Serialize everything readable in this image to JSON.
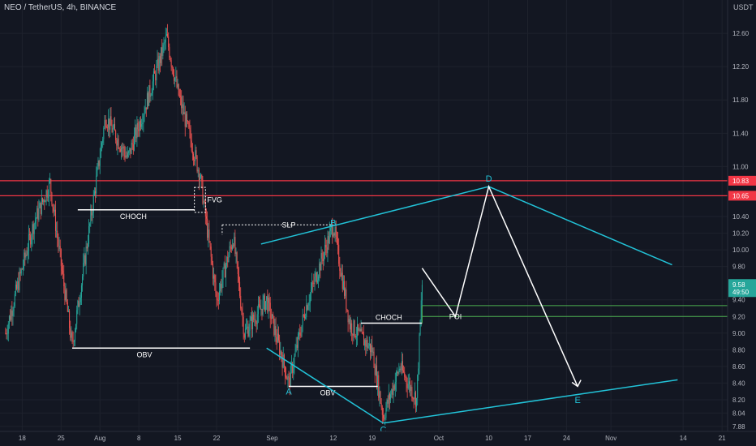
{
  "header": {
    "title": "NEO / TetherUS, 4h, BINANCE",
    "unit": "USDT"
  },
  "colors": {
    "background": "#131722",
    "grid": "#1e222d",
    "up": "#26a69a",
    "down": "#ef5350",
    "resistance": "#f23645",
    "pattern": "#22c3d8",
    "annotation": "#ffffff",
    "poi": "#4caf50"
  },
  "chart_data": {
    "type": "candlestick",
    "xaxis": {
      "ticks": [
        {
          "label": "18",
          "date": "2024-07-18"
        },
        {
          "label": "25",
          "date": "2024-07-25"
        },
        {
          "label": "Aug",
          "date": "2024-08-01"
        },
        {
          "label": "8",
          "date": "2024-08-08"
        },
        {
          "label": "15",
          "date": "2024-08-15"
        },
        {
          "label": "22",
          "date": "2024-08-22"
        },
        {
          "label": "Sep",
          "date": "2024-09-01"
        },
        {
          "label": "12",
          "date": "2024-09-12"
        },
        {
          "label": "19",
          "date": "2024-09-19"
        },
        {
          "label": "Oct",
          "date": "2024-10-01"
        },
        {
          "label": "10",
          "date": "2024-10-10"
        },
        {
          "label": "17",
          "date": "2024-10-17"
        },
        {
          "label": "24",
          "date": "2024-10-24"
        },
        {
          "label": "Nov",
          "date": "2024-11-01"
        },
        {
          "label": "14",
          "date": "2024-11-14"
        },
        {
          "label": "21",
          "date": "2024-11-21"
        }
      ]
    },
    "yaxis": {
      "ticks": [
        "7.88",
        "8.04",
        "8.20",
        "8.40",
        "8.60",
        "8.80",
        "9.00",
        "9.20",
        "9.40",
        "9.80",
        "10.00",
        "10.20",
        "10.40",
        "10.65",
        "10.83",
        "11.00",
        "11.40",
        "11.80",
        "12.20",
        "12.60"
      ],
      "range": [
        7.82,
        13.0
      ]
    },
    "price_key_points": [
      {
        "date": "2024-07-15",
        "price": 9.0
      },
      {
        "date": "2024-07-20",
        "price": 10.3
      },
      {
        "date": "2024-07-23",
        "price": 10.8
      },
      {
        "date": "2024-07-27",
        "price": 8.84
      },
      {
        "date": "2024-08-02",
        "price": 11.6
      },
      {
        "date": "2024-08-06",
        "price": 11.1
      },
      {
        "date": "2024-08-10",
        "price": 11.9
      },
      {
        "date": "2024-08-13",
        "price": 12.55
      },
      {
        "date": "2024-08-15",
        "price": 11.9
      },
      {
        "date": "2024-08-19",
        "price": 10.9
      },
      {
        "date": "2024-08-22",
        "price": 9.4
      },
      {
        "date": "2024-08-25",
        "price": 10.15
      },
      {
        "date": "2024-08-27",
        "price": 9.0
      },
      {
        "date": "2024-08-31",
        "price": 9.4
      },
      {
        "date": "2024-09-04",
        "price": 8.4
      },
      {
        "date": "2024-09-07",
        "price": 9.3
      },
      {
        "date": "2024-09-12",
        "price": 10.3
      },
      {
        "date": "2024-09-15",
        "price": 9.1
      },
      {
        "date": "2024-09-19",
        "price": 8.8
      },
      {
        "date": "2024-09-21",
        "price": 8.0
      },
      {
        "date": "2024-09-24",
        "price": 8.6
      },
      {
        "date": "2024-09-27",
        "price": 8.2
      },
      {
        "date": "2024-09-28",
        "price": 9.58
      }
    ],
    "price_levels": [
      {
        "name": "resistance-high",
        "price": 10.83,
        "label": "10.83"
      },
      {
        "name": "resistance-low",
        "price": 10.65,
        "label": "10.65"
      }
    ],
    "current_price": {
      "label": "9.58",
      "countdown": "49:50",
      "price": 9.58
    },
    "zones": {
      "fvg": {
        "label": "FVG",
        "top": 10.75,
        "bottom": 10.45
      },
      "poi": {
        "label": "POI",
        "top": 9.33,
        "bottom": 9.2
      }
    },
    "annotations": [
      {
        "label": "CHOCH",
        "price": 10.48
      },
      {
        "label": "SLP",
        "price": 10.3
      },
      {
        "label": "OBV",
        "price": 8.82
      },
      {
        "label": "CHOCH",
        "price": 9.12
      },
      {
        "label": "OBV",
        "price": 8.36
      }
    ],
    "pattern_points": [
      {
        "label": "A",
        "date": "2024-09-04",
        "price": 8.38
      },
      {
        "label": "B",
        "date": "2024-09-12",
        "price": 10.23
      },
      {
        "label": "C",
        "date": "2024-09-21",
        "price": 7.92
      },
      {
        "label": "D",
        "date": "2024-10-10",
        "price": 10.76
      },
      {
        "label": "E",
        "date": "2024-10-26",
        "price": 8.28
      }
    ]
  }
}
